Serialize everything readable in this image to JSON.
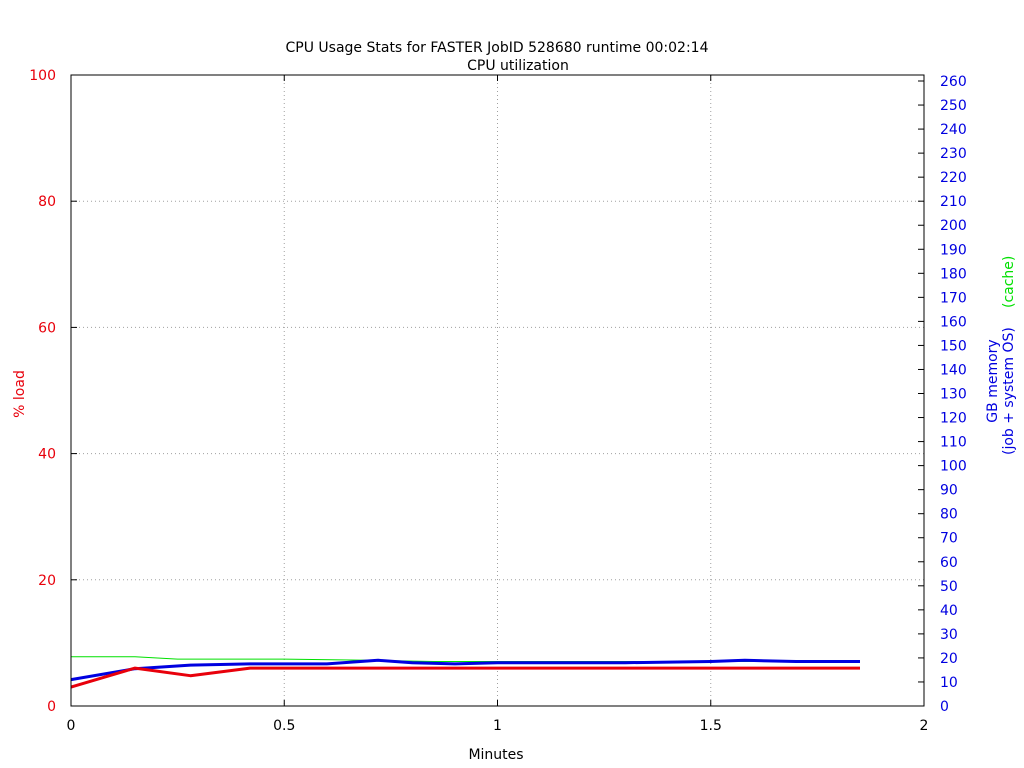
{
  "chart_data": {
    "type": "line",
    "title": "CPU Usage Stats for FASTER JobID 528680  runtime 00:02:14",
    "subtitle": "CPU utilization",
    "xlabel": "Minutes",
    "ylabel": "% load",
    "y2label_main": "GB memory",
    "y2label_sub": "(job + system OS)",
    "y2label_extra": "(cache)",
    "xlim": [
      0,
      2
    ],
    "ylim": [
      0,
      100
    ],
    "y2lim": [
      0,
      262.5
    ],
    "xticks": [
      0,
      0.5,
      1,
      1.5,
      2
    ],
    "xtick_labels": [
      "0",
      "0.5",
      "1",
      "1.5",
      "2"
    ],
    "yticks": [
      0,
      20,
      40,
      60,
      80,
      100
    ],
    "ytick_labels": [
      "0",
      "20",
      "40",
      "60",
      "80",
      "100"
    ],
    "y2ticks": [
      0,
      10,
      20,
      30,
      40,
      50,
      60,
      70,
      80,
      90,
      100,
      110,
      120,
      130,
      140,
      150,
      160,
      170,
      180,
      190,
      200,
      210,
      220,
      230,
      240,
      250,
      260
    ],
    "y2tick_labels": [
      "0",
      "10",
      "20",
      "30",
      "40",
      "50",
      "60",
      "70",
      "80",
      "90",
      "100",
      "110",
      "120",
      "130",
      "140",
      "150",
      "160",
      "170",
      "180",
      "190",
      "200",
      "210",
      "220",
      "230",
      "240",
      "250",
      "260"
    ],
    "grid": true,
    "colors": {
      "load": "#e8000b",
      "memory": "#0000e0",
      "cache": "#00e000",
      "axis_left": "#e8000b",
      "axis_right": "#0000e0",
      "grid": "#a0a0a0"
    },
    "series": [
      {
        "key": "load",
        "axis": "y",
        "x": [
          0,
          0.15,
          0.28,
          0.42,
          0.55,
          0.7,
          0.85,
          1.0,
          1.2,
          1.4,
          1.6,
          1.85
        ],
        "values": [
          3.0,
          6.0,
          4.8,
          6.0,
          6.0,
          6.0,
          6.0,
          6.0,
          6.0,
          6.0,
          6.0,
          6.0
        ]
      },
      {
        "key": "memory",
        "axis": "y2",
        "x": [
          0,
          0.15,
          0.28,
          0.42,
          0.6,
          0.72,
          0.8,
          0.9,
          1.0,
          1.1,
          1.3,
          1.5,
          1.58,
          1.7,
          1.85
        ],
        "values": [
          11,
          15.5,
          17,
          17.5,
          17.5,
          19,
          18,
          17.5,
          18,
          18,
          18,
          18.5,
          19,
          18.5,
          18.5
        ]
      },
      {
        "key": "cache",
        "axis": "y2",
        "x": [
          0,
          0.15,
          0.25,
          0.5,
          0.7,
          0.85,
          1.0,
          1.2,
          1.5,
          1.85
        ],
        "values": [
          20.5,
          20.5,
          19.5,
          19.5,
          19,
          18.5,
          18.5,
          18.5,
          18.5,
          18.5
        ]
      }
    ]
  }
}
